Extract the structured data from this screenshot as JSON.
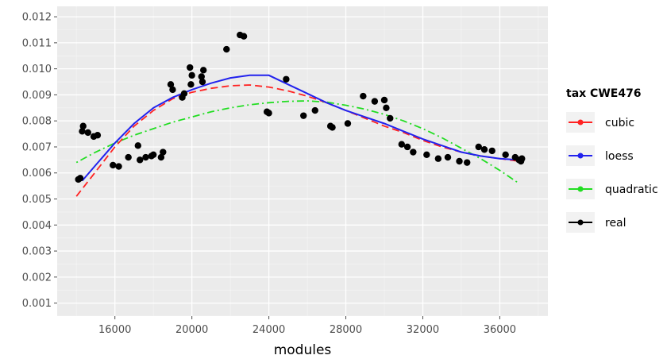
{
  "chart_data": {
    "type": "scatter",
    "xlabel": "modules",
    "ylabel": "",
    "xlim": [
      13000,
      38500
    ],
    "ylim": [
      0.0005,
      0.0124
    ],
    "x_ticks": [
      16000,
      20000,
      24000,
      28000,
      32000,
      36000
    ],
    "x_tick_labels": [
      "16000",
      "20000",
      "24000",
      "28000",
      "32000",
      "36000"
    ],
    "y_ticks": [
      0.001,
      0.002,
      0.003,
      0.004,
      0.005,
      0.006,
      0.007,
      0.008,
      0.009,
      0.01,
      0.011,
      0.012
    ],
    "y_tick_labels": [
      "0.001",
      "0.002",
      "0.003",
      "0.004",
      "0.005",
      "0.006",
      "0.007",
      "0.008",
      "0.009",
      "0.010",
      "0.011",
      "0.012"
    ],
    "grid": true,
    "legend": {
      "title": "tax CWE476",
      "position": "right",
      "entries": [
        "cubic",
        "loess",
        "quadratic",
        "real"
      ]
    },
    "colors": {
      "panel": "#ebebeb",
      "grid": "#ffffff",
      "cubic": "#ff2222",
      "loess": "#2222ee",
      "quadratic": "#22dd22",
      "real": "#000000"
    },
    "series": [
      {
        "name": "real",
        "style": "points",
        "points": [
          [
            14100,
            0.00575
          ],
          [
            14200,
            0.0058
          ],
          [
            14300,
            0.0076
          ],
          [
            14350,
            0.0078
          ],
          [
            14600,
            0.00755
          ],
          [
            14900,
            0.0074
          ],
          [
            15100,
            0.00745
          ],
          [
            15900,
            0.0063
          ],
          [
            16200,
            0.00625
          ],
          [
            16700,
            0.0066
          ],
          [
            17200,
            0.00705
          ],
          [
            17300,
            0.0065
          ],
          [
            17600,
            0.0066
          ],
          [
            17900,
            0.00665
          ],
          [
            18000,
            0.0067
          ],
          [
            18400,
            0.0066
          ],
          [
            18500,
            0.0068
          ],
          [
            18900,
            0.0094
          ],
          [
            19000,
            0.0092
          ],
          [
            19500,
            0.0089
          ],
          [
            19600,
            0.00905
          ],
          [
            19900,
            0.01005
          ],
          [
            19950,
            0.0094
          ],
          [
            20000,
            0.00975
          ],
          [
            20500,
            0.0097
          ],
          [
            20550,
            0.0095
          ],
          [
            20600,
            0.00995
          ],
          [
            21800,
            0.01075
          ],
          [
            22500,
            0.0113
          ],
          [
            22700,
            0.01125
          ],
          [
            23900,
            0.00835
          ],
          [
            24000,
            0.0083
          ],
          [
            24900,
            0.0096
          ],
          [
            25800,
            0.0082
          ],
          [
            26400,
            0.0084
          ],
          [
            27200,
            0.0078
          ],
          [
            27300,
            0.00775
          ],
          [
            28100,
            0.0079
          ],
          [
            28900,
            0.00895
          ],
          [
            29500,
            0.00875
          ],
          [
            30000,
            0.0088
          ],
          [
            30100,
            0.0085
          ],
          [
            30300,
            0.0081
          ],
          [
            30900,
            0.0071
          ],
          [
            31200,
            0.007
          ],
          [
            31500,
            0.0068
          ],
          [
            32200,
            0.0067
          ],
          [
            32800,
            0.00655
          ],
          [
            33300,
            0.0066
          ],
          [
            33900,
            0.00645
          ],
          [
            34300,
            0.0064
          ],
          [
            34900,
            0.007
          ],
          [
            35200,
            0.0069
          ],
          [
            35600,
            0.00685
          ],
          [
            36300,
            0.0067
          ],
          [
            36800,
            0.0066
          ],
          [
            37000,
            0.0065
          ],
          [
            37100,
            0.00645
          ],
          [
            37150,
            0.00655
          ]
        ]
      },
      {
        "name": "loess",
        "style": "solid",
        "points": [
          [
            14300,
            0.0057
          ],
          [
            15000,
            0.0063
          ],
          [
            16000,
            0.00715
          ],
          [
            17000,
            0.0079
          ],
          [
            18000,
            0.0085
          ],
          [
            19000,
            0.0089
          ],
          [
            20000,
            0.0092
          ],
          [
            21000,
            0.00945
          ],
          [
            22000,
            0.00965
          ],
          [
            23000,
            0.00975
          ],
          [
            24000,
            0.00975
          ],
          [
            25000,
            0.0094
          ],
          [
            26000,
            0.00905
          ],
          [
            27000,
            0.0087
          ],
          [
            28000,
            0.0084
          ],
          [
            29000,
            0.00815
          ],
          [
            30000,
            0.0079
          ],
          [
            31000,
            0.0076
          ],
          [
            32000,
            0.0073
          ],
          [
            33000,
            0.00705
          ],
          [
            34000,
            0.0068
          ],
          [
            35000,
            0.00665
          ],
          [
            36000,
            0.00655
          ],
          [
            37000,
            0.0065
          ]
        ]
      },
      {
        "name": "cubic",
        "style": "dashed",
        "points": [
          [
            14000,
            0.0051
          ],
          [
            15000,
            0.00605
          ],
          [
            16000,
            0.007
          ],
          [
            17000,
            0.0078
          ],
          [
            18000,
            0.0084
          ],
          [
            19000,
            0.00885
          ],
          [
            20000,
            0.0091
          ],
          [
            21000,
            0.00925
          ],
          [
            22000,
            0.00935
          ],
          [
            23000,
            0.00938
          ],
          [
            24000,
            0.0093
          ],
          [
            25000,
            0.00915
          ],
          [
            26000,
            0.00895
          ],
          [
            27000,
            0.0087
          ],
          [
            28000,
            0.0084
          ],
          [
            29000,
            0.0081
          ],
          [
            30000,
            0.0078
          ],
          [
            31000,
            0.00755
          ],
          [
            32000,
            0.00725
          ],
          [
            33000,
            0.007
          ],
          [
            34000,
            0.0068
          ],
          [
            35000,
            0.00665
          ],
          [
            36000,
            0.00655
          ],
          [
            37000,
            0.00645
          ]
        ]
      },
      {
        "name": "quadratic",
        "style": "dotdash",
        "points": [
          [
            14000,
            0.0064
          ],
          [
            15000,
            0.0068
          ],
          [
            16000,
            0.00715
          ],
          [
            17000,
            0.00745
          ],
          [
            18000,
            0.0077
          ],
          [
            19000,
            0.00795
          ],
          [
            20000,
            0.00815
          ],
          [
            21000,
            0.00835
          ],
          [
            22000,
            0.0085
          ],
          [
            23000,
            0.00862
          ],
          [
            24000,
            0.0087
          ],
          [
            25000,
            0.00875
          ],
          [
            26000,
            0.00877
          ],
          [
            27000,
            0.00872
          ],
          [
            28000,
            0.0086
          ],
          [
            29000,
            0.00845
          ],
          [
            30000,
            0.00825
          ],
          [
            31000,
            0.008
          ],
          [
            32000,
            0.0077
          ],
          [
            33000,
            0.00735
          ],
          [
            34000,
            0.00695
          ],
          [
            35000,
            0.00655
          ],
          [
            36000,
            0.0061
          ],
          [
            37000,
            0.0056
          ]
        ]
      }
    ]
  }
}
